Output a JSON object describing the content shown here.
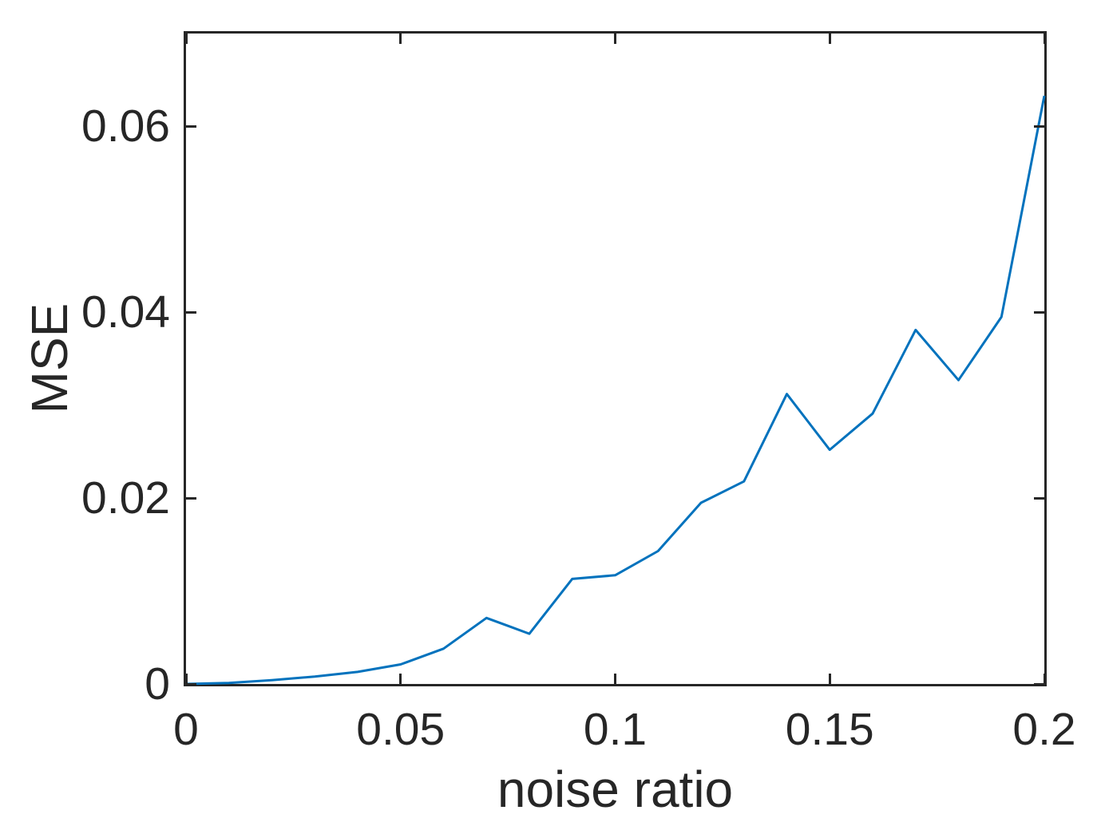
{
  "figure": {
    "background": "#ffffff",
    "axes_color": "#262626",
    "text_color": "#262626"
  },
  "chart_data": {
    "type": "line",
    "title": "",
    "xlabel": "noise ratio",
    "ylabel": "MSE",
    "xlim": [
      0,
      0.2
    ],
    "ylim": [
      0,
      0.07
    ],
    "grid": false,
    "legend_position": "none",
    "x_ticks": [
      0,
      0.05,
      0.1,
      0.15,
      0.2
    ],
    "x_tick_labels": [
      "0",
      "0.05",
      "0.1",
      "0.15",
      "0.2"
    ],
    "y_ticks": [
      0,
      0.02,
      0.04,
      0.06
    ],
    "y_tick_labels": [
      "0",
      "0.02",
      "0.04",
      "0.06"
    ],
    "series": [
      {
        "name": "MSE vs noise ratio",
        "color": "#0072BD",
        "line_width": 3,
        "x": [
          0,
          0.01,
          0.02,
          0.03,
          0.04,
          0.05,
          0.06,
          0.07,
          0.08,
          0.09,
          0.1,
          0.11,
          0.12,
          0.13,
          0.14,
          0.15,
          0.16,
          0.17,
          0.18,
          0.19,
          0.2
        ],
        "y": [
          0.0,
          0.0001,
          0.0004,
          0.0008,
          0.0013,
          0.0021,
          0.0038,
          0.0071,
          0.0054,
          0.0113,
          0.0117,
          0.0143,
          0.0195,
          0.0218,
          0.0312,
          0.0252,
          0.0291,
          0.0381,
          0.0327,
          0.0395,
          0.0633
        ]
      }
    ]
  }
}
